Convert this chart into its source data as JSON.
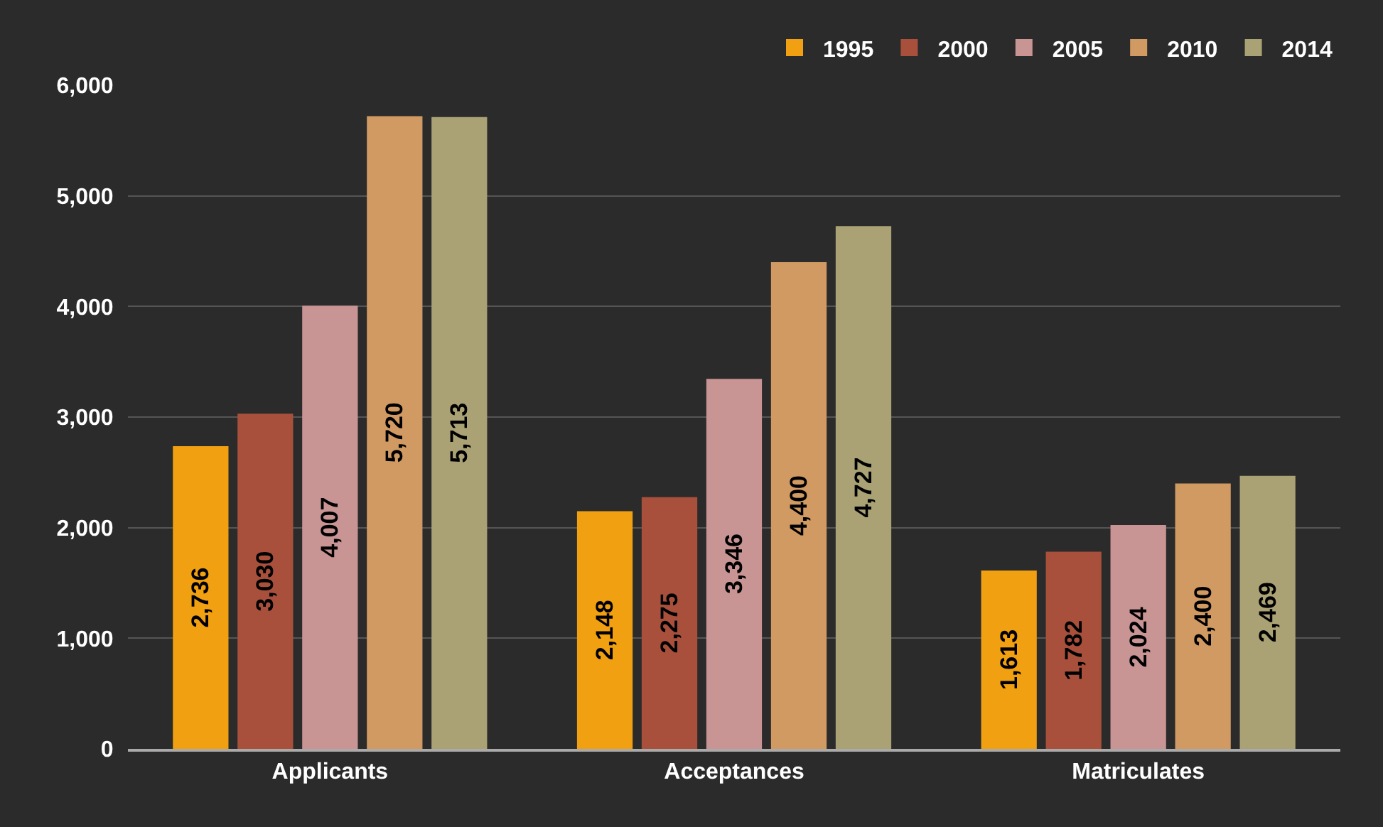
{
  "chart_data": {
    "type": "bar",
    "categories": [
      "Applicants",
      "Acceptances",
      "Matriculates"
    ],
    "series": [
      {
        "name": "1995",
        "color": "#f0a010",
        "values": [
          2736,
          2148,
          1613
        ],
        "value_labels": [
          "2,736",
          "2,148",
          "1,613"
        ]
      },
      {
        "name": "2000",
        "color": "#a8503c",
        "values": [
          3030,
          2275,
          1782
        ],
        "value_labels": [
          "3,030",
          "2,275",
          "1,782"
        ]
      },
      {
        "name": "2005",
        "color": "#c89494",
        "values": [
          4007,
          3346,
          2024
        ],
        "value_labels": [
          "4,007",
          "3,346",
          "2,024"
        ]
      },
      {
        "name": "2010",
        "color": "#d09a62",
        "values": [
          5720,
          4400,
          2400
        ],
        "value_labels": [
          "5,720",
          "4,400",
          "2,400"
        ]
      },
      {
        "name": "2014",
        "color": "#aaa274",
        "values": [
          5713,
          4727,
          2469
        ],
        "value_labels": [
          "5,713",
          "4,727",
          "2,469"
        ]
      }
    ],
    "ylim": [
      0,
      6000
    ],
    "yticks": [
      {
        "value": 0,
        "label": "0"
      },
      {
        "value": 1000,
        "label": "1,000"
      },
      {
        "value": 2000,
        "label": "2,000"
      },
      {
        "value": 3000,
        "label": "3,000"
      },
      {
        "value": 4000,
        "label": "4,000"
      },
      {
        "value": 5000,
        "label": "5,000"
      },
      {
        "value": 6000,
        "label": "6,000"
      }
    ],
    "grid": "y",
    "legend": "top right"
  }
}
